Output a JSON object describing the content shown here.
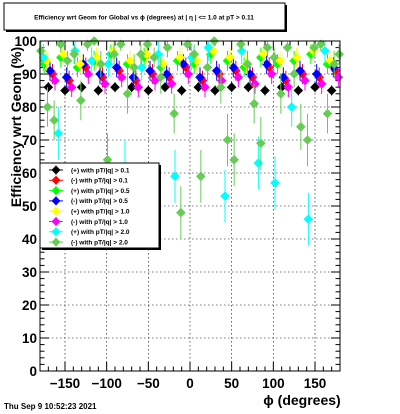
{
  "chart_data": {
    "type": "scatter",
    "title": "Efficiency wrt Geom for Global vs ϕ (degrees) at |  η | <= 1.0 at pT > 0.11",
    "xlabel": "ϕ (degrees)",
    "ylabel": "Efficiency wrt Geom (%)",
    "xlim": [
      -180,
      180
    ],
    "ylim": [
      0,
      100
    ],
    "x_ticks": [
      "−150",
      "−100",
      "−50",
      "0",
      "50",
      "100",
      "150"
    ],
    "x_tick_values": [
      -150,
      -100,
      -50,
      0,
      50,
      100,
      150
    ],
    "y_ticks": [
      "0",
      "10",
      "20",
      "30",
      "40",
      "50",
      "60",
      "70",
      "80",
      "90",
      "100"
    ],
    "y_tick_values": [
      0,
      10,
      20,
      30,
      40,
      50,
      60,
      70,
      80,
      90,
      100
    ],
    "grid": true,
    "legend_position": "left-middle",
    "footer": "Thu Sep  9 10:52:23 2021",
    "series": [
      {
        "name": "(+) with pT/|q| > 0.1",
        "color": "#000000",
        "marker": "diamond",
        "x": [
          -170,
          -150,
          -130,
          -110,
          -90,
          -70,
          -50,
          -30,
          -10,
          10,
          30,
          50,
          70,
          90,
          110,
          130,
          150,
          170
        ],
        "y": [
          86,
          85,
          86,
          85,
          86,
          86,
          85,
          86,
          85,
          86,
          85,
          86,
          86,
          85,
          86,
          85,
          86,
          85
        ],
        "err": [
          1.5,
          1.5,
          1.5,
          1.5,
          1.5,
          1.5,
          1.5,
          1.5,
          1.5,
          1.5,
          1.5,
          1.5,
          1.5,
          1.5,
          1.5,
          1.5,
          1.5,
          1.5
        ]
      },
      {
        "name": "(-) with pT/|q| > 0.1",
        "color": "#ff0000",
        "marker": "diamond",
        "x": [
          -165,
          -145,
          -125,
          -105,
          -85,
          -65,
          -45,
          -25,
          -5,
          15,
          35,
          55,
          75,
          95,
          115,
          135,
          155,
          175
        ],
        "y": [
          90,
          88,
          92,
          89,
          91,
          88,
          90,
          89,
          92,
          88,
          90,
          91,
          89,
          92,
          88,
          90,
          89,
          91
        ],
        "err": [
          3,
          3,
          3,
          3,
          3,
          3,
          3,
          3,
          3,
          3,
          3,
          3,
          3,
          3,
          3,
          3,
          3,
          3
        ]
      },
      {
        "name": "(+) with pT/|q| > 0.5",
        "color": "#00ff00",
        "marker": "diamond",
        "x": [
          -175,
          -155,
          -135,
          -115,
          -95,
          -75,
          -55,
          -35,
          -15,
          5,
          25,
          45,
          65,
          85,
          105,
          125,
          145,
          165
        ],
        "y": [
          93,
          95,
          92,
          94,
          96,
          93,
          95,
          92,
          94,
          93,
          96,
          94,
          92,
          95,
          93,
          94,
          96,
          93
        ],
        "err": [
          3,
          3,
          3,
          3,
          3,
          3,
          3,
          3,
          3,
          3,
          3,
          3,
          3,
          3,
          3,
          3,
          3,
          3
        ]
      },
      {
        "name": "(-) with pT/|q| > 0.5",
        "color": "#0000ff",
        "marker": "diamond",
        "x": [
          -168,
          -148,
          -128,
          -108,
          -88,
          -68,
          -48,
          -28,
          -8,
          12,
          32,
          52,
          72,
          92,
          112,
          132,
          152,
          172
        ],
        "y": [
          91,
          89,
          93,
          90,
          92,
          89,
          91,
          90,
          93,
          89,
          91,
          92,
          90,
          93,
          89,
          91,
          90,
          92
        ],
        "err": [
          3,
          3,
          3,
          3,
          3,
          3,
          3,
          3,
          3,
          3,
          3,
          3,
          3,
          3,
          3,
          3,
          3,
          3
        ]
      },
      {
        "name": "(+) with pT/|q| > 1.0",
        "color": "#ffff00",
        "marker": "diamond",
        "x": [
          -172,
          -152,
          -132,
          -112,
          -92,
          -72,
          -52,
          -32,
          -12,
          8,
          28,
          48,
          68,
          88,
          108,
          128,
          148,
          168
        ],
        "y": [
          94,
          96,
          93,
          95,
          97,
          94,
          96,
          93,
          95,
          94,
          97,
          95,
          93,
          96,
          94,
          95,
          97,
          94
        ],
        "err": [
          3,
          3,
          3,
          3,
          3,
          3,
          3,
          3,
          3,
          3,
          3,
          3,
          3,
          3,
          3,
          3,
          3,
          3
        ]
      },
      {
        "name": "(-) with pT/|q| > 1.0",
        "color": "#ff00ff",
        "marker": "diamond",
        "x": [
          -162,
          -142,
          -122,
          -102,
          -82,
          -62,
          -42,
          -22,
          -2,
          18,
          38,
          58,
          78,
          98,
          118,
          138,
          158,
          178
        ],
        "y": [
          88,
          86,
          90,
          87,
          89,
          86,
          88,
          87,
          90,
          86,
          88,
          89,
          87,
          90,
          86,
          88,
          87,
          89
        ],
        "err": [
          3,
          3,
          3,
          3,
          3,
          3,
          3,
          3,
          3,
          3,
          3,
          3,
          3,
          3,
          3,
          3,
          3,
          3
        ]
      },
      {
        "name": "(+) with pT/|q| > 2.0",
        "color": "#00ffff",
        "marker": "diamond",
        "x": [
          -176,
          -158,
          -138,
          -118,
          -98,
          -78,
          -58,
          -38,
          -18,
          2,
          22,
          42,
          62,
          82,
          102,
          122,
          142,
          162
        ],
        "y": [
          95,
          72,
          97,
          94,
          93,
          62,
          92,
          96,
          59,
          95,
          98,
          53,
          97,
          63,
          57,
          80,
          46,
          97
        ],
        "err": [
          4,
          8,
          4,
          4,
          4,
          8,
          4,
          4,
          8,
          4,
          4,
          8,
          4,
          8,
          8,
          6,
          8,
          4
        ]
      },
      {
        "name": "(-) with pT/|q| > 2.0",
        "color": "#66cc55",
        "marker": "diamond",
        "x": [
          -179,
          -171,
          -163,
          -155,
          -147,
          -139,
          -131,
          -123,
          -115,
          -107,
          -99,
          -91,
          -83,
          -75,
          -67,
          -59,
          -51,
          -43,
          -35,
          -27,
          -19,
          -11,
          -3,
          5,
          13,
          21,
          29,
          37,
          45,
          53,
          61,
          69,
          77,
          85,
          93,
          101,
          109,
          117,
          125,
          133,
          141,
          149,
          157,
          165,
          173,
          179
        ],
        "y": [
          97,
          80,
          76,
          99,
          94,
          96,
          82,
          99,
          100,
          93,
          64,
          96,
          99,
          84,
          92,
          96,
          99,
          95,
          89,
          98,
          78,
          48,
          99,
          96,
          59,
          92,
          100,
          86,
          70,
          64,
          99,
          93,
          81,
          69,
          98,
          95,
          84,
          98,
          90,
          74,
          70,
          98,
          99,
          78,
          93,
          96
        ],
        "err": [
          3,
          6,
          6,
          2,
          3,
          3,
          6,
          2,
          1,
          4,
          8,
          3,
          2,
          6,
          4,
          3,
          2,
          3,
          5,
          3,
          6,
          8,
          2,
          3,
          8,
          4,
          1,
          5,
          8,
          8,
          2,
          4,
          6,
          8,
          3,
          3,
          6,
          3,
          4,
          7,
          8,
          3,
          2,
          6,
          4,
          3
        ]
      }
    ]
  }
}
